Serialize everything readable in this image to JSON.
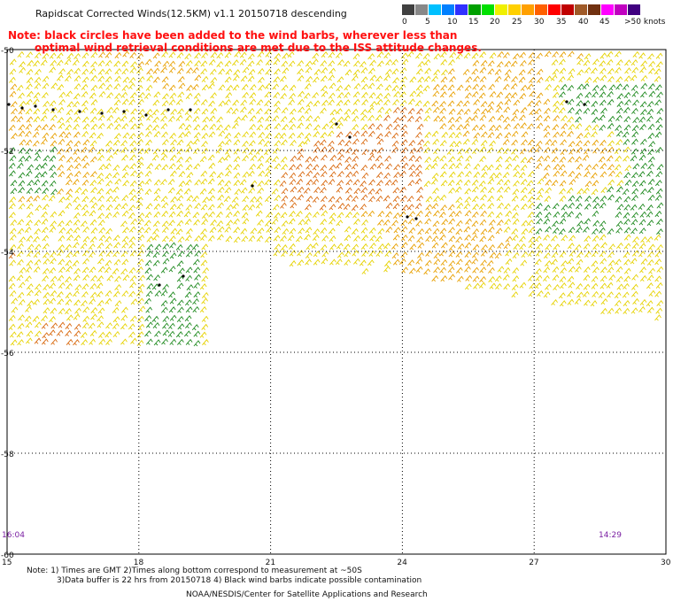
{
  "header": {
    "title": "Rapidscat Corrected Winds(12.5KM) v1.1 20150718 descending"
  },
  "legend": {
    "colors": [
      "#404040",
      "#888888",
      "#00c0ff",
      "#0080ff",
      "#3030ff",
      "#00a000",
      "#00e000",
      "#f0f000",
      "#ffd000",
      "#ffa000",
      "#ff6000",
      "#ff0000",
      "#c00000",
      "#a05a28",
      "#703010",
      "#ff00ff",
      "#c000c0",
      "#400080"
    ],
    "labels": [
      "0",
      "5",
      "10",
      "15",
      "20",
      "25",
      "30",
      "35",
      "40",
      "45",
      ">50 knots"
    ]
  },
  "note": {
    "line1": "Note: black circles have been added to the wind barbs, wherever less than",
    "line2": "optimal wind retrieval conditions are met due to the ISS attitude changes."
  },
  "map": {
    "lat_labels": [
      "-50",
      "-52",
      "-54",
      "-56",
      "-58",
      "-60"
    ],
    "lon_labels": [
      "15",
      "18",
      "21",
      "24",
      "27",
      "30"
    ],
    "time_start": "16:04",
    "time_end": "14:29"
  },
  "footer": {
    "line1": "Note: 1) Times are GMT 2)Times along bottom correspond to measurement at ~50S",
    "line2": "3)Data buffer is 22 hrs from 20150718 4) Black wind barbs indicate possible contamination",
    "credit": "NOAA/NESDIS/Center for Satellite Applications and Research"
  }
}
